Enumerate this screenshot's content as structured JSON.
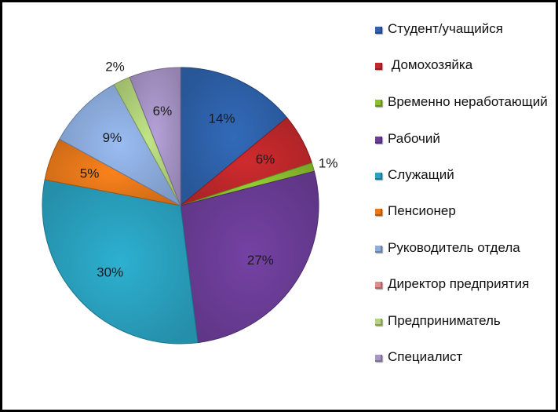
{
  "chart_data": {
    "type": "pie",
    "title": "",
    "legend_position": "right",
    "categories": [
      "Студент/учащийся",
      " Домохозяйка",
      "Временно неработающий",
      "Рабочий",
      "Служащий",
      "Пенсионер",
      "Руководитель отдела",
      "Директор предприятия",
      "Предприниматель",
      "Специалист"
    ],
    "values": [
      14,
      6,
      1,
      27,
      30,
      5,
      9,
      0,
      2,
      6
    ],
    "value_labels": [
      "14%",
      "6%",
      "1%",
      "27%",
      "30%",
      "5%",
      "9%",
      "",
      "2%",
      "6%"
    ],
    "colors": [
      "#2e62ab",
      "#c0282b",
      "#8bbf2e",
      "#6c3d98",
      "#2aa3c1",
      "#e8781a",
      "#8eaee0",
      "#e58a8a",
      "#b3d47c",
      "#a895c8"
    ]
  }
}
